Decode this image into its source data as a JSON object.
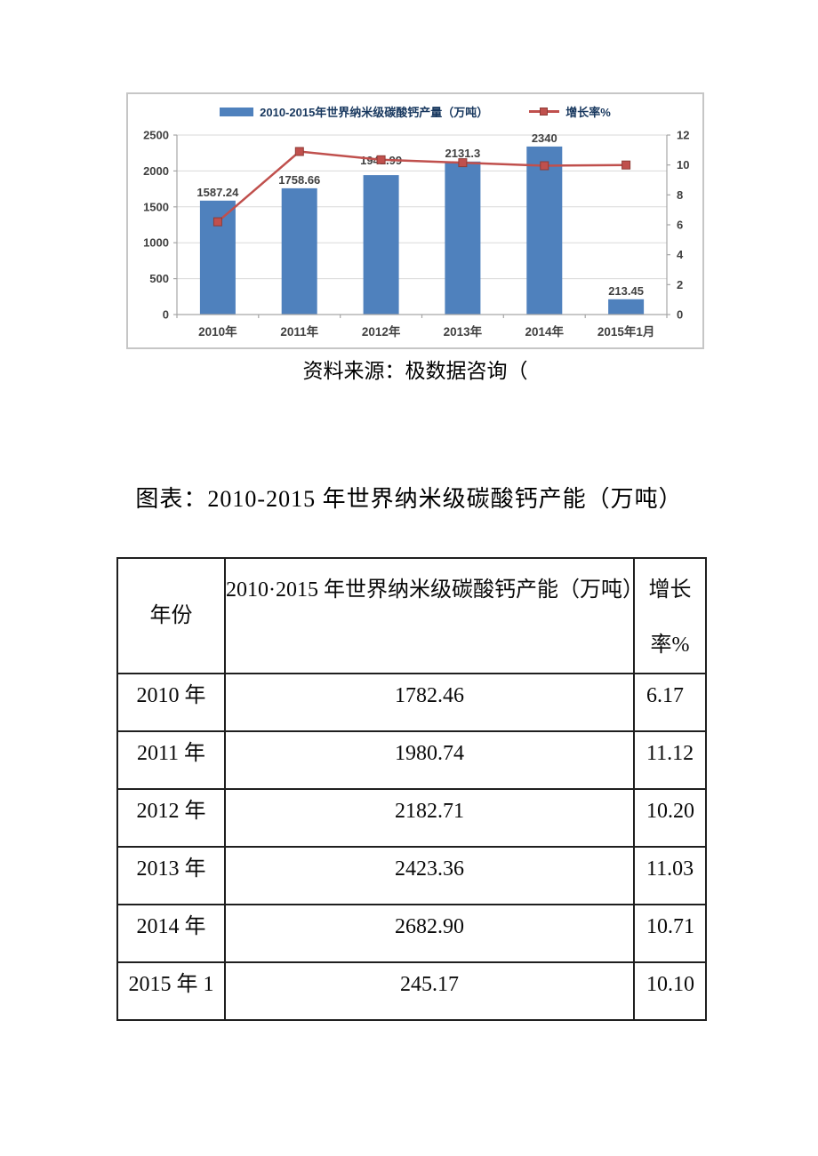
{
  "page": {
    "source_line": "资料来源：极数据咨询（",
    "table_title": "图表：2010-2015 年世界纳米级碳酸钙产能（万吨）"
  },
  "chart_data": {
    "type": "bar",
    "categories": [
      "2010年",
      "2011年",
      "2012年",
      "2013年",
      "2014年",
      "2015年1月"
    ],
    "series": [
      {
        "name": "2010-2015年世界纳米级碳酸钙产量（万吨）",
        "type": "bar",
        "axis": "left",
        "values": [
          1587.24,
          1758.66,
          1941.99,
          2131.3,
          2340,
          213.45
        ],
        "labels": [
          "1587.24",
          "1758.66",
          "1941.99",
          "2131.3",
          "2340",
          "213.45"
        ],
        "color": "#4f81bd"
      },
      {
        "name": "增长率%",
        "type": "line",
        "axis": "right",
        "values": [
          6.2,
          10.9,
          10.35,
          10.15,
          9.95,
          10.0
        ],
        "color": "#c0504d",
        "marker_border": "#8e3b36",
        "note": "values estimated from line position against right axis"
      }
    ],
    "left_axis": {
      "min": 0,
      "max": 2500,
      "ticks": [
        0,
        500,
        1000,
        1500,
        2000,
        2500
      ]
    },
    "right_axis": {
      "min": 0,
      "max": 12,
      "ticks": [
        0,
        2,
        4,
        6,
        8,
        10,
        12
      ]
    },
    "grid": true,
    "legend_position": "top",
    "tick_color": "#404040",
    "grid_color": "#d9d9d9",
    "axis_color": "#a6a6a6"
  },
  "table": {
    "headers": [
      "年份",
      "2010·2015 年世界纳米级碳酸钙产能（万吨）",
      "增长率%"
    ],
    "rows": [
      [
        "2010 年",
        "1782.46",
        "6.17"
      ],
      [
        "2011 年",
        "1980.74",
        "11.12"
      ],
      [
        "2012 年",
        "2182.71",
        "10.20"
      ],
      [
        "2013 年",
        "2423.36",
        "11.03"
      ],
      [
        "2014 年",
        "2682.90",
        "10.71"
      ],
      [
        "2015 年 1",
        "245.17",
        "10.10"
      ]
    ]
  }
}
